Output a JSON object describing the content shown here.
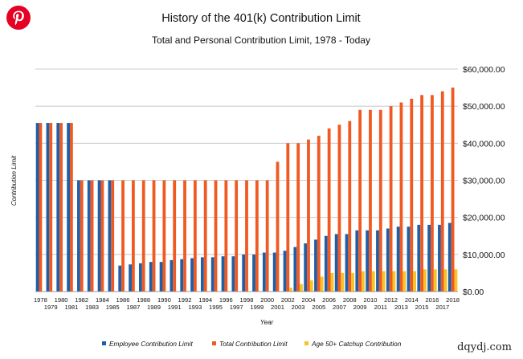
{
  "brand": {
    "pin_icon": "pinterest-icon",
    "pin_color": "#e60023"
  },
  "watermark": "dqydj.com",
  "chart_data": {
    "type": "bar",
    "title": "History of the 401(k) Contribution Limit",
    "subtitle": "Total and Personal Contribution Limit, 1978 - Today",
    "xlabel": "Year",
    "ylabel": "Contribution Limit",
    "ylim": [
      0,
      60000
    ],
    "y_ticks": [
      "$0.00",
      "$10,000.00",
      "$20,000.00",
      "$30,000.00",
      "$40,000.00",
      "$50,000.00",
      "$60,000.00"
    ],
    "y_axis_side": "right",
    "grid": true,
    "legend_position": "bottom",
    "categories": [
      "1978",
      "1979",
      "1980",
      "1981",
      "1982",
      "1983",
      "1984",
      "1985",
      "1986",
      "1987",
      "1988",
      "1989",
      "1990",
      "1991",
      "1992",
      "1993",
      "1994",
      "1995",
      "1996",
      "1997",
      "1998",
      "1999",
      "2000",
      "2001",
      "2002",
      "2003",
      "2004",
      "2005",
      "2006",
      "2007",
      "2008",
      "2009",
      "2010",
      "2011",
      "2012",
      "2013",
      "2014",
      "2015",
      "2016",
      "2017",
      "2018"
    ],
    "series": [
      {
        "name": "Employee Contribution Limit",
        "color": "#1f5fa6",
        "values": [
          45475,
          45475,
          45475,
          45475,
          30000,
          30000,
          30000,
          30000,
          7000,
          7313,
          7627,
          7979,
          7979,
          8475,
          8728,
          8994,
          9240,
          9240,
          9500,
          9500,
          10000,
          10000,
          10500,
          10500,
          11000,
          12000,
          13000,
          14000,
          15000,
          15500,
          15500,
          16500,
          16500,
          16500,
          17000,
          17500,
          17500,
          18000,
          18000,
          18000,
          18500
        ]
      },
      {
        "name": "Total Contribution Limit",
        "color": "#f05a22",
        "values": [
          45475,
          45475,
          45475,
          45475,
          30000,
          30000,
          30000,
          30000,
          30000,
          30000,
          30000,
          30000,
          30000,
          30000,
          30000,
          30000,
          30000,
          30000,
          30000,
          30000,
          30000,
          30000,
          30000,
          35000,
          40000,
          40000,
          41000,
          42000,
          44000,
          45000,
          46000,
          49000,
          49000,
          49000,
          50000,
          51000,
          52000,
          53000,
          53000,
          54000,
          55000
        ]
      },
      {
        "name": "Age 50+ Catchup Contribution",
        "color": "#f7c325",
        "values": [
          0,
          0,
          0,
          0,
          0,
          0,
          0,
          0,
          0,
          0,
          0,
          0,
          0,
          0,
          0,
          0,
          0,
          0,
          0,
          0,
          0,
          0,
          0,
          0,
          1000,
          2000,
          3000,
          4000,
          5000,
          5000,
          5000,
          5500,
          5500,
          5500,
          5500,
          5500,
          5500,
          6000,
          6000,
          6000,
          6000
        ]
      }
    ]
  }
}
